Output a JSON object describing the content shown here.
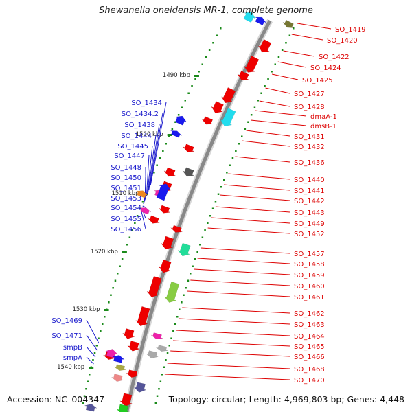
{
  "title": "Shewanella oneidensis MR-1, complete genome",
  "footer": {
    "accession": "Accession: NC_004347",
    "topology": "Topology: circular; Length: 4,969,803 bp; Genes: 4,448"
  },
  "colors": {
    "forward_strand": "#ee0000",
    "reverse_strand": "#1a1aee",
    "forward_label": "#dd0000",
    "reverse_label": "#1a1acc",
    "backbone": "#888888",
    "tick": "#1a8a1a"
  },
  "scale_labels": [
    "1490 kbp",
    "1500 kbp",
    "1510 kbp",
    "1520 kbp",
    "1530 kbp",
    "1540 kbp"
  ],
  "right_labels": [
    "SO_1419",
    "SO_1420",
    "SO_1422",
    "SO_1424",
    "SO_1425",
    "SO_1427",
    "SO_1428",
    "dmaA-1",
    "dmsB-1",
    "SO_1431",
    "SO_1432",
    "SO_1436",
    "SO_1440",
    "SO_1441",
    "SO_1442",
    "SO_1443",
    "SO_1449",
    "SO_1452",
    "SO_1457",
    "SO_1458",
    "SO_1459",
    "SO_1460",
    "SO_1461",
    "SO_1462",
    "SO_1463",
    "SO_1464",
    "SO_1465",
    "SO_1466",
    "SO_1468",
    "SO_1470"
  ],
  "left_labels": [
    "SO_1434",
    "SO_1434.2",
    "SO_1438",
    "SO_1444",
    "SO_1445",
    "SO_1447",
    "SO_1448",
    "SO_1450",
    "SO_1451",
    "SO_1453",
    "SO_1454",
    "SO_1455",
    "SO_1456",
    "SO_1469",
    "SO_1471",
    "smpB",
    "smpA"
  ]
}
